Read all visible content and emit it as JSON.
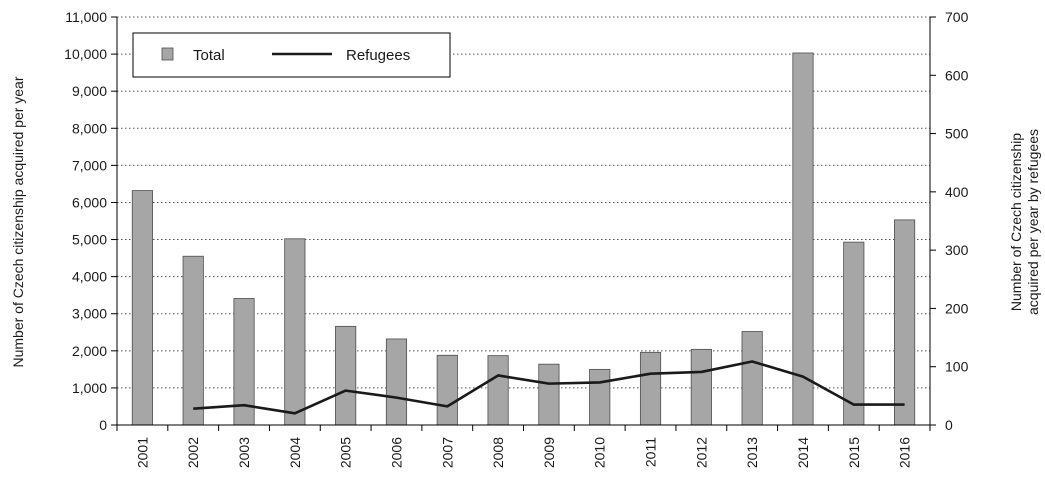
{
  "chart_data": {
    "type": "bar",
    "categories": [
      "2001",
      "2002",
      "2003",
      "2004",
      "2005",
      "2006",
      "2007",
      "2008",
      "2009",
      "2010",
      "2011",
      "2012",
      "2013",
      "2014",
      "2015",
      "2016"
    ],
    "series": [
      {
        "name": "Total",
        "type": "bar",
        "axis": "left",
        "color": "#a6a6a6",
        "values": [
          6320,
          4550,
          3410,
          5020,
          2660,
          2320,
          1880,
          1870,
          1640,
          1500,
          1960,
          2040,
          2520,
          10030,
          4930,
          5530
        ]
      },
      {
        "name": "Refugees",
        "type": "line",
        "axis": "right",
        "color": "#1a1a1a",
        "values": [
          null,
          28,
          34,
          20,
          59,
          47,
          32,
          85,
          71,
          73,
          88,
          91,
          109,
          83,
          35,
          35
        ]
      }
    ],
    "ylabel": "Number of Czech citizenship acquired per year",
    "y2label_lines": [
      "Number of Czech citizenship",
      "acquired per year by refugees"
    ],
    "ylim": [
      0,
      11000
    ],
    "y2lim": [
      0,
      700
    ],
    "yticks": [
      "0",
      "1,000",
      "2,000",
      "3,000",
      "4,000",
      "5,000",
      "6,000",
      "7,000",
      "8,000",
      "9,000",
      "10,000",
      "11,000"
    ],
    "y2ticks": [
      "0",
      "100",
      "200",
      "300",
      "400",
      "500",
      "600",
      "700"
    ],
    "grid": "horizontal dotted",
    "legend_position": "top-left"
  }
}
